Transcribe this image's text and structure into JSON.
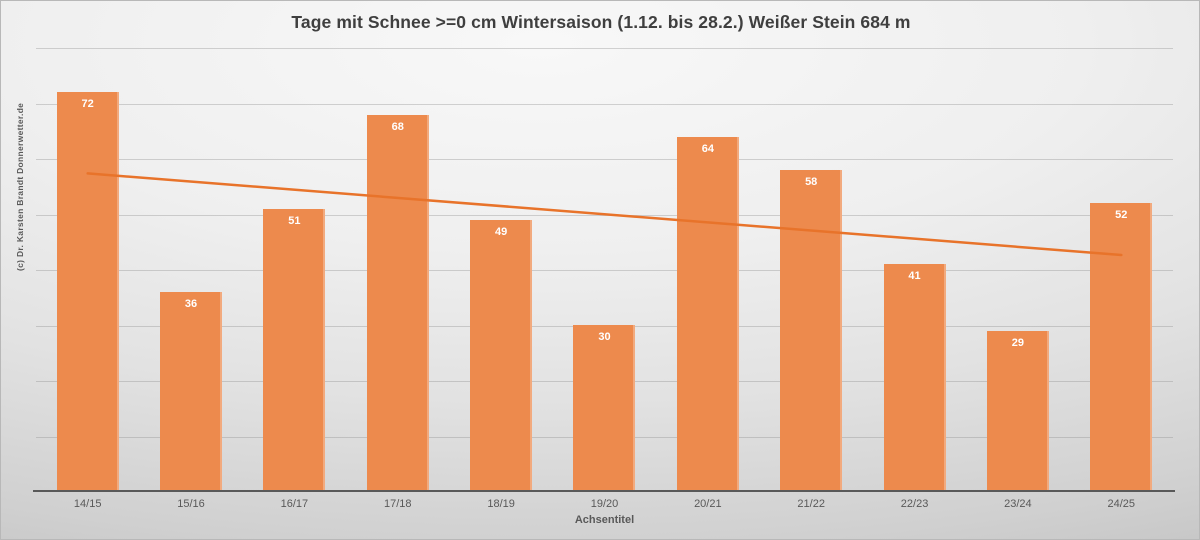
{
  "title": "Tage mit Schnee >=0 cm Wintersaison (1.12. bis 28.2.) Weißer Stein 684 m",
  "copyright": "(c) Dr. Karsten  Brandt  Donnerwetter.de",
  "axis_title": "Achsentitel",
  "chart_data": {
    "type": "bar",
    "title": "Tage mit Schnee >=0 cm Wintersaison (1.12. bis 28.2.) Weißer Stein 684 m",
    "xlabel": "Achsentitel",
    "ylabel": "",
    "categories": [
      "14/15",
      "15/16",
      "16/17",
      "17/18",
      "18/19",
      "19/20",
      "20/21",
      "21/22",
      "22/23",
      "23/24",
      "24/25"
    ],
    "values": [
      72,
      36,
      51,
      68,
      49,
      30,
      64,
      58,
      41,
      29,
      52
    ],
    "ylim": [
      0,
      80
    ],
    "grid": "on",
    "grid_step": 10,
    "legend": "none",
    "bar_color": "#ed8a4d",
    "bar_label_color": "#ffffff",
    "trendline": {
      "type": "linear",
      "start_value": 57.4,
      "end_value": 42.7,
      "color": "#e8732a"
    }
  },
  "colors": {
    "title_text": "#3f3f3f",
    "axis_text": "#595959",
    "axis_line": "#595959",
    "gridline": "#919191",
    "background_light": "#f8f8f8",
    "background_dark": "#c2c2c2"
  }
}
